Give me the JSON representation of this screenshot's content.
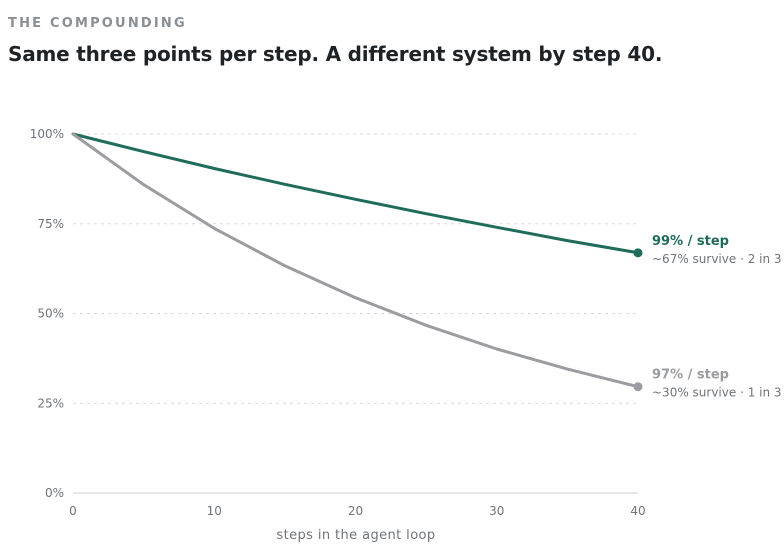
{
  "header": {
    "eyebrow": "THE COMPOUNDING",
    "title": "Same three points per step. A different system by step 40."
  },
  "colors": {
    "series_99": "#1f6b5c",
    "series_97": "#9a9c9f",
    "grid": "#d9d9d9",
    "axis": "#cfcfcf"
  },
  "chart_data": {
    "type": "line",
    "xlabel": "steps in the agent loop",
    "ylabel": "",
    "xlim": [
      0,
      40
    ],
    "ylim": [
      0,
      100
    ],
    "x_ticks": [
      0,
      10,
      20,
      30,
      40
    ],
    "y_ticks": [
      0,
      25,
      50,
      75,
      100
    ],
    "y_tick_labels": [
      "0%",
      "25%",
      "50%",
      "75%",
      "100%"
    ],
    "grid": "horizontal-dashed",
    "x": [
      0,
      5,
      10,
      15,
      20,
      25,
      30,
      35,
      40
    ],
    "series": [
      {
        "name": "99% / step",
        "note": "~67% survive · 2 in 3",
        "color": "#1f6b5c",
        "values": [
          100,
          95.1,
          90.4,
          86.0,
          81.8,
          77.8,
          74.0,
          70.3,
          66.9
        ]
      },
      {
        "name": "97% / step",
        "note": "~30% survive · 1 in 3",
        "color": "#9a9c9f",
        "values": [
          100,
          85.9,
          73.7,
          63.3,
          54.4,
          46.7,
          40.1,
          34.5,
          29.6
        ]
      }
    ]
  }
}
